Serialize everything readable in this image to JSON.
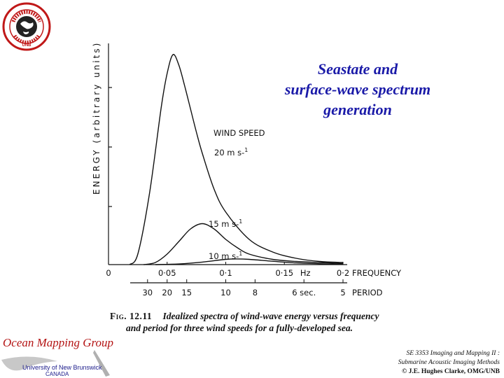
{
  "slide": {
    "title_lines": [
      "Seastate and",
      "surface-wave spectrum",
      "generation"
    ],
    "logo_text": "GEODESY AND GEOMATICS ENGINEERING",
    "logo_sub": "UNB"
  },
  "caption": {
    "fig_label": "Fig. 12.11",
    "line1": "Idealized spectra of wind-wave energy versus frequency",
    "line2": "and period for three wind speeds for a fully-developed sea."
  },
  "footer": {
    "group": "Ocean Mapping Group",
    "university": "University of New Brunswick",
    "country": "CANADA",
    "course_line1": "SE 3353 Imaging and Mapping II :",
    "course_line2": "Submarine Acoustic Imaging Methods",
    "course_line3": "© J.E. Hughes Clarke, OMG/UNB"
  },
  "colors": {
    "title": "#1a1aa8",
    "group": "#b41414",
    "ink": "#111111"
  },
  "chart_data": {
    "type": "line",
    "ylabel": "ENERGY (arbitrary units)",
    "xlabel": "FREQUENCY",
    "x2label": "PERIOD",
    "legend_title": "WIND SPEED",
    "x_ticks": [
      "0",
      "0·05",
      "0·1",
      "0·15",
      "Hz",
      "0·2"
    ],
    "x_tick_values": [
      0,
      0.05,
      0.1,
      0.15,
      0.2
    ],
    "period_ticks": [
      {
        "label": "30",
        "freq": 0.0333
      },
      {
        "label": "20",
        "freq": 0.05
      },
      {
        "label": "15",
        "freq": 0.0667
      },
      {
        "label": "10",
        "freq": 0.1
      },
      {
        "label": "8",
        "freq": 0.125
      },
      {
        "label": "6 sec.",
        "freq": 0.1667
      },
      {
        "label": "5",
        "freq": 0.2
      }
    ],
    "xlim": [
      0,
      0.2
    ],
    "ylim": [
      0,
      100
    ],
    "series": [
      {
        "name": "20 m s-1",
        "x": [
          0.018,
          0.025,
          0.035,
          0.045,
          0.05,
          0.055,
          0.06,
          0.065,
          0.07,
          0.075,
          0.08,
          0.09,
          0.1,
          0.12,
          0.14,
          0.16,
          0.18,
          0.2
        ],
        "y": [
          0,
          5,
          34,
          75,
          91,
          100,
          95,
          85,
          74,
          63,
          53,
          36,
          25,
          12,
          6,
          3,
          1.5,
          1
        ]
      },
      {
        "name": "15 m s-1",
        "x": [
          0.03,
          0.04,
          0.05,
          0.06,
          0.07,
          0.08,
          0.09,
          0.1,
          0.11,
          0.12,
          0.14,
          0.16,
          0.18,
          0.2
        ],
        "y": [
          0,
          1,
          5,
          11,
          17,
          19.5,
          17,
          12,
          8,
          5,
          2.5,
          1.5,
          1,
          0.5
        ]
      },
      {
        "name": "10 m s-1",
        "x": [
          0.04,
          0.06,
          0.08,
          0.1,
          0.11,
          0.12,
          0.14,
          0.16,
          0.18,
          0.2
        ],
        "y": [
          0,
          0.3,
          1.2,
          2.5,
          2.7,
          2.5,
          1.6,
          0.8,
          0.4,
          0.2
        ]
      }
    ],
    "grid": false
  }
}
